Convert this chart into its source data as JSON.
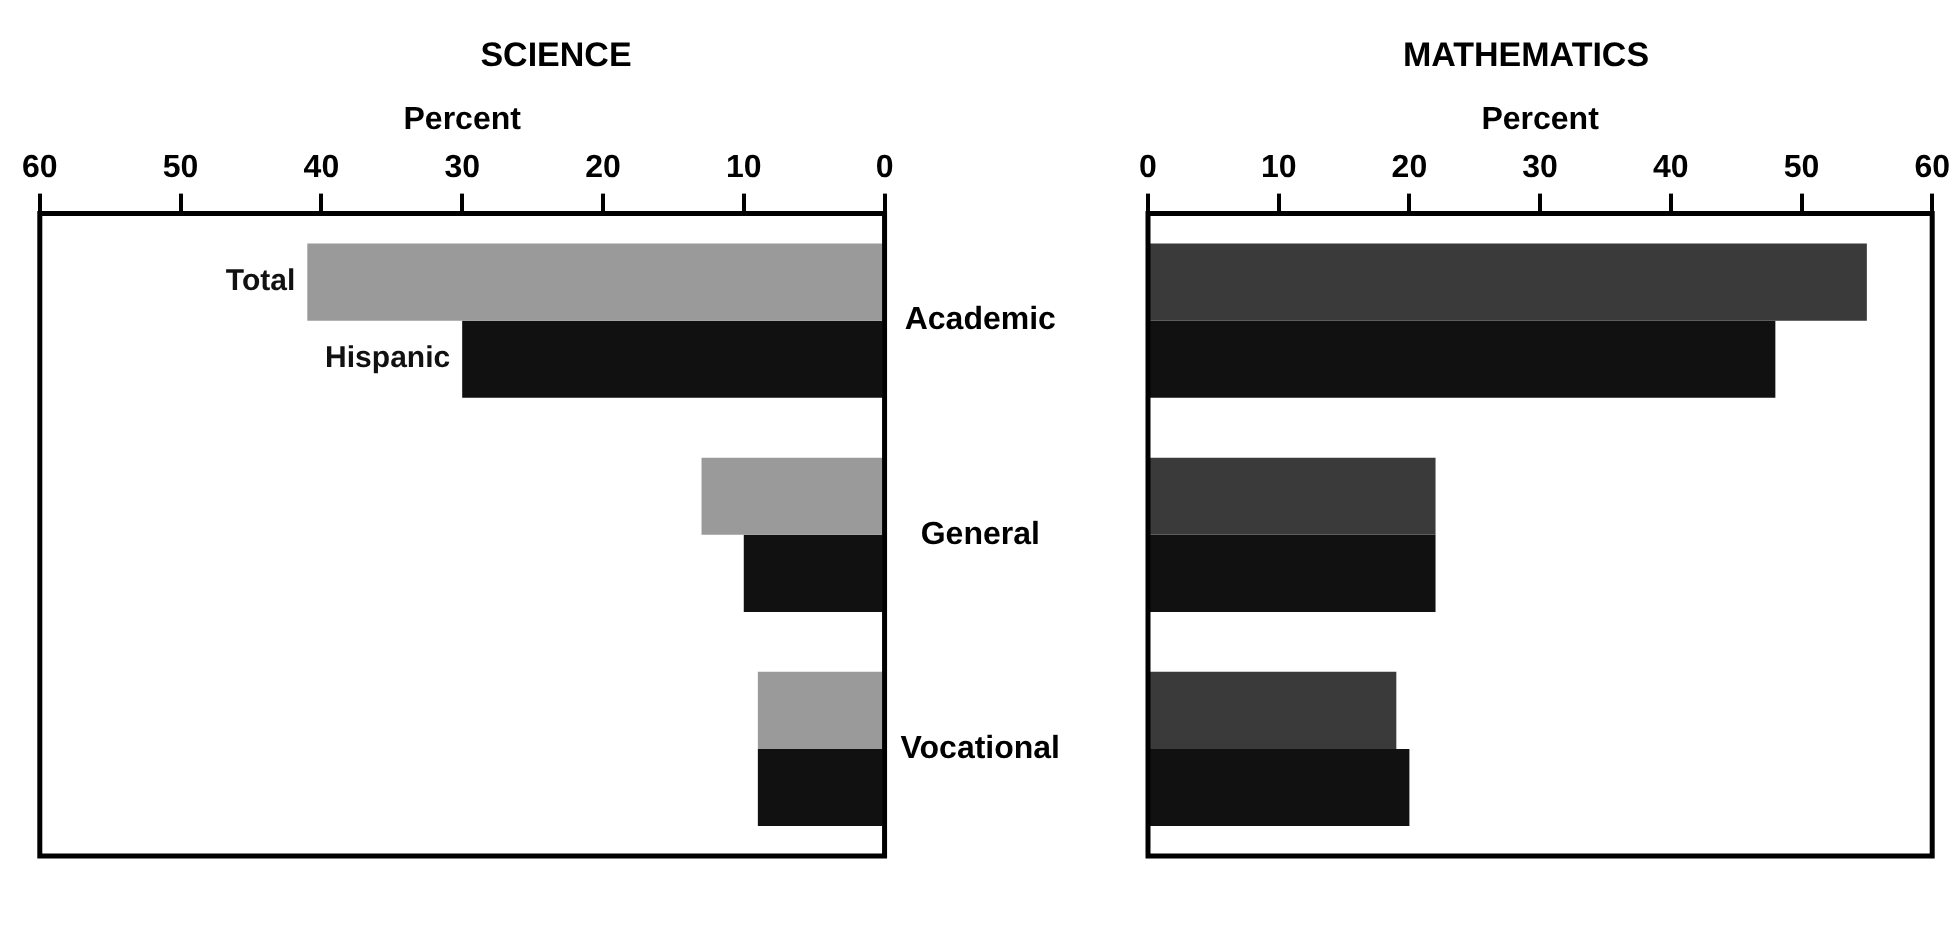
{
  "chart_data": [
    {
      "type": "bar",
      "orientation": "horizontal",
      "title": "SCIENCE",
      "xlabel": "Percent",
      "categories": [
        "Academic",
        "General",
        "Vocational"
      ],
      "xlim": [
        60,
        0
      ],
      "xticks": [
        60,
        50,
        40,
        30,
        20,
        10,
        0
      ],
      "grid": false,
      "legend": false,
      "series": [
        {
          "name": "Total",
          "color": "#9a9a9a",
          "values": [
            41,
            13,
            9
          ]
        },
        {
          "name": "Hispanic",
          "color": "#111111",
          "values": [
            30,
            10,
            9
          ]
        }
      ]
    },
    {
      "type": "bar",
      "orientation": "horizontal",
      "title": "MATHEMATICS",
      "xlabel": "Percent",
      "categories": [
        null,
        null,
        null
      ],
      "xlim": [
        0,
        60
      ],
      "xticks": [
        0,
        10,
        20,
        30,
        40,
        50,
        60
      ],
      "grid": false,
      "legend": false,
      "series": [
        {
          "color": "#3a3a3a",
          "values": [
            55,
            22,
            19
          ]
        },
        {
          "color": "#111111",
          "values": [
            48,
            22,
            20
          ]
        }
      ]
    }
  ]
}
